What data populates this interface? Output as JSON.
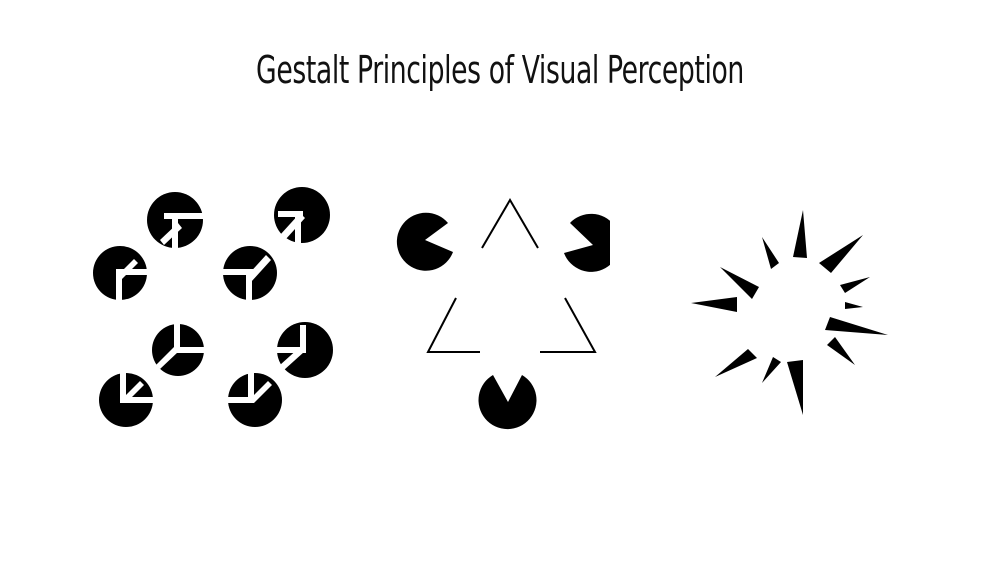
{
  "slide": {
    "title": "Gestalt Principles of Visual Perception"
  },
  "illustrations": [
    {
      "name": "illusory-cube",
      "shape": "cube"
    },
    {
      "name": "kanizsa-triangle",
      "shape": "triangle"
    },
    {
      "name": "illusory-sphere",
      "shape": "sphere"
    }
  ],
  "colors": {
    "background": "#ffffff",
    "ink": "#000000",
    "title": "#111111"
  }
}
